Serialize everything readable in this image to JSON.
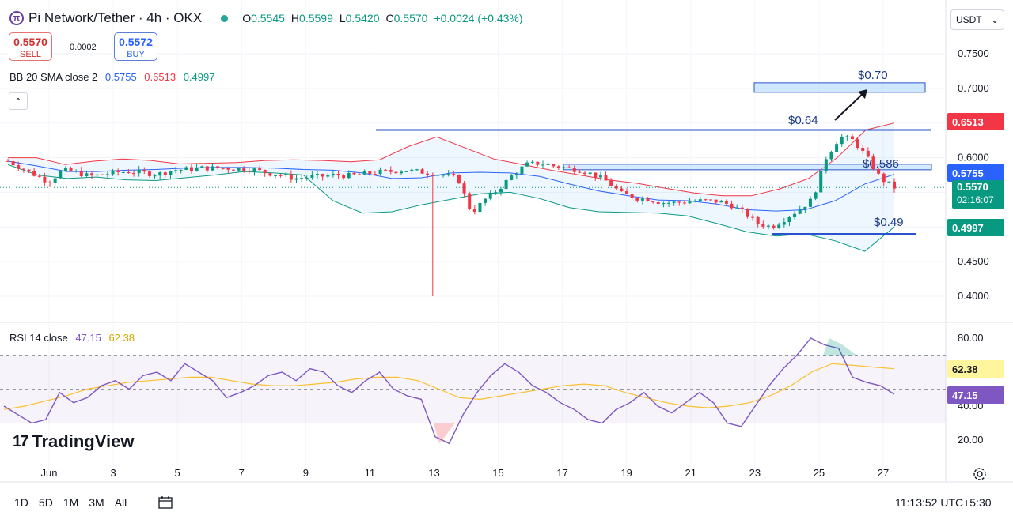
{
  "header": {
    "title": "Pi Network/Tether · 4h · OKX",
    "logo": "π",
    "ohlc": {
      "o_label": "O",
      "o": "0.5545",
      "h_label": "H",
      "h": "0.5599",
      "l_label": "L",
      "l": "0.5420",
      "c_label": "C",
      "c": "0.5570",
      "change": "+0.0024 (+0.43%)"
    },
    "currency_select": "USDT"
  },
  "trade": {
    "sell_price": "0.5570",
    "sell_label": "SELL",
    "spread": "0.0002",
    "buy_price": "0.5572",
    "buy_label": "BUY"
  },
  "indicators": {
    "bb": {
      "label": "BB 20 SMA close 2",
      "basis": "0.5755",
      "upper": "0.6513",
      "lower": "0.4997"
    },
    "rsi": {
      "label": "RSI 14 close",
      "rsi": "47.15",
      "ma": "62.38"
    }
  },
  "price_labels": {
    "upper": "0.6513",
    "basis": "0.5755",
    "last": "0.5570",
    "countdown": "02:16:07",
    "lower": "0.4997",
    "rsi_ma": "62.38",
    "rsi": "47.15"
  },
  "annotations": {
    "target": "$0.70",
    "resistance": "$0.64",
    "mid": "$0.586",
    "support": "$0.49"
  },
  "colors": {
    "up": "#089981",
    "down": "#f23645",
    "bb_basis": "#2962ff",
    "bb_upper": "#f23645",
    "bb_lower": "#089981",
    "rsi": "#7e57c2",
    "rsi_ma": "#fbc02d",
    "lines": "#2952cc"
  },
  "footer": {
    "timeframes": [
      "1D",
      "5D",
      "1M",
      "3M",
      "All"
    ],
    "clock": "11:13:52 UTC+5:30",
    "brand": "TradingView"
  },
  "chart_data": {
    "type": "candlestick",
    "symbol": "Pi Network/Tether",
    "interval": "4h",
    "y_axis_ticks": [
      0.75,
      0.7,
      0.65,
      0.6,
      0.55,
      0.5,
      0.45,
      0.4
    ],
    "y_axis_labels": [
      "0.7500",
      "0.7000",
      "",
      "0.6000",
      "",
      "",
      "0.4500",
      "0.4000"
    ],
    "x_axis_labels": [
      "Jun",
      "3",
      "5",
      "7",
      "9",
      "11",
      "13",
      "15",
      "17",
      "19",
      "21",
      "23",
      "25",
      "27"
    ],
    "close_path": [
      0.595,
      0.585,
      0.575,
      0.565,
      0.582,
      0.579,
      0.573,
      0.576,
      0.579,
      0.58,
      0.578,
      0.576,
      0.582,
      0.583,
      0.585,
      0.585,
      0.585,
      0.584,
      0.583,
      0.578,
      0.575,
      0.57,
      0.572,
      0.573,
      0.575,
      0.574,
      0.576,
      0.579,
      0.58,
      0.582,
      0.58,
      0.578,
      0.575,
      0.57,
      0.52,
      0.54,
      0.555,
      0.575,
      0.59,
      0.592,
      0.588,
      0.585,
      0.582,
      0.575,
      0.565,
      0.548,
      0.542,
      0.54,
      0.535,
      0.535,
      0.537,
      0.538,
      0.537,
      0.532,
      0.52,
      0.505,
      0.5,
      0.512,
      0.525,
      0.54,
      0.6,
      0.63,
      0.625,
      0.6,
      0.57,
      0.557
    ],
    "bb_upper_path": [
      0.6,
      0.6,
      0.59,
      0.595,
      0.598,
      0.596,
      0.591,
      0.592,
      0.593,
      0.596,
      0.597,
      0.596,
      0.594,
      0.597,
      0.616,
      0.63,
      0.614,
      0.598,
      0.59,
      0.582,
      0.575,
      0.568,
      0.563,
      0.556,
      0.549,
      0.545,
      0.545,
      0.555,
      0.57,
      0.6,
      0.64,
      0.65
    ],
    "bb_basis_path": [
      0.595,
      0.588,
      0.58,
      0.58,
      0.582,
      0.583,
      0.585,
      0.586,
      0.586,
      0.585,
      0.583,
      0.582,
      0.578,
      0.57,
      0.571,
      0.578,
      0.579,
      0.578,
      0.573,
      0.562,
      0.552,
      0.545,
      0.539,
      0.538,
      0.533,
      0.525,
      0.523,
      0.525,
      0.538,
      0.562,
      0.576
    ],
    "bb_lower_path": [
      0.59,
      0.575,
      0.57,
      0.572,
      0.568,
      0.567,
      0.571,
      0.575,
      0.58,
      0.578,
      0.575,
      0.538,
      0.52,
      0.522,
      0.532,
      0.54,
      0.548,
      0.55,
      0.541,
      0.528,
      0.522,
      0.521,
      0.52,
      0.516,
      0.505,
      0.493,
      0.487,
      0.49,
      0.48,
      0.465,
      0.5
    ],
    "levels": [
      {
        "name": "resistance",
        "value": 0.64
      },
      {
        "name": "mid",
        "value": 0.586
      },
      {
        "name": "support",
        "value": 0.49
      },
      {
        "name": "target",
        "value": 0.7
      }
    ],
    "rsi": {
      "ticks": [
        80,
        60,
        40,
        20
      ],
      "tick_labels": [
        "80.00",
        "",
        "40.00",
        "20.00"
      ],
      "bands": [
        70,
        50,
        30
      ],
      "rsi_path": [
        40,
        35,
        30,
        32,
        48,
        42,
        45,
        52,
        55,
        50,
        58,
        60,
        55,
        65,
        60,
        55,
        45,
        48,
        52,
        58,
        60,
        55,
        62,
        60,
        52,
        48,
        55,
        60,
        50,
        46,
        44,
        22,
        18,
        35,
        48,
        58,
        65,
        60,
        52,
        48,
        42,
        38,
        32,
        30,
        38,
        42,
        48,
        40,
        36,
        42,
        48,
        42,
        30,
        28,
        40,
        52,
        62,
        70,
        80,
        76,
        74,
        57,
        54,
        52,
        47
      ],
      "rsi_ma_path": [
        38,
        40,
        43,
        46,
        50,
        52,
        54,
        55,
        56,
        57,
        57,
        55,
        53,
        52,
        52,
        53,
        54,
        56,
        57,
        57,
        55,
        50,
        45,
        44,
        46,
        48,
        50,
        52,
        53,
        52,
        48,
        45,
        42,
        40,
        39,
        40,
        42,
        46,
        52,
        60,
        65,
        64,
        63,
        62
      ]
    }
  }
}
